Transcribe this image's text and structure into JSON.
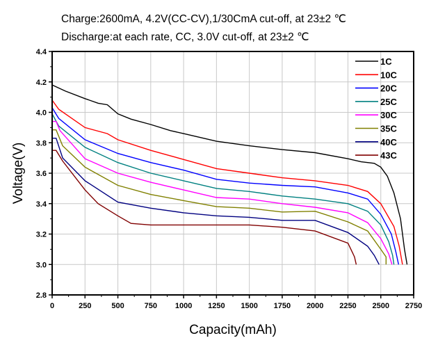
{
  "chart_data": {
    "type": "line",
    "title": "Charge:2600mA, 4.2V(CC-CV),1/30CmA cut-off, at 23±2 ℃",
    "subtitle": "Discharge:at each rate, CC, 3.0V cut-off, at 23±2 ℃",
    "xlabel": "Capacity(mAh)",
    "ylabel": "Voltage(V)",
    "xlim": [
      0,
      2750
    ],
    "ylim": [
      2.8,
      4.4
    ],
    "xticks": [
      "0",
      "250",
      "500",
      "750",
      "1000",
      "1250",
      "1500",
      "1750",
      "2000",
      "2250",
      "2500",
      "2750"
    ],
    "yticks": [
      "2.8",
      "3.0",
      "3.2",
      "3.4",
      "3.6",
      "3.8",
      "4.0",
      "4.2",
      "4.4"
    ],
    "grid": true,
    "legend_position": "top-right",
    "series": [
      {
        "name": "1C",
        "color": "#000000",
        "points": [
          [
            0,
            4.18
          ],
          [
            100,
            4.14
          ],
          [
            250,
            4.09
          ],
          [
            350,
            4.06
          ],
          [
            420,
            4.05
          ],
          [
            500,
            3.99
          ],
          [
            600,
            3.955
          ],
          [
            750,
            3.92
          ],
          [
            900,
            3.88
          ],
          [
            1000,
            3.86
          ],
          [
            1250,
            3.81
          ],
          [
            1500,
            3.78
          ],
          [
            1750,
            3.755
          ],
          [
            2000,
            3.735
          ],
          [
            2250,
            3.695
          ],
          [
            2350,
            3.675
          ],
          [
            2450,
            3.665
          ],
          [
            2500,
            3.64
          ],
          [
            2550,
            3.58
          ],
          [
            2600,
            3.47
          ],
          [
            2650,
            3.3
          ],
          [
            2680,
            3.1
          ],
          [
            2700,
            3.0
          ]
        ]
      },
      {
        "name": "10C",
        "color": "#ff0000",
        "points": [
          [
            0,
            4.08
          ],
          [
            50,
            4.02
          ],
          [
            250,
            3.9
          ],
          [
            420,
            3.86
          ],
          [
            500,
            3.82
          ],
          [
            750,
            3.75
          ],
          [
            1000,
            3.69
          ],
          [
            1250,
            3.63
          ],
          [
            1500,
            3.6
          ],
          [
            1750,
            3.57
          ],
          [
            2000,
            3.55
          ],
          [
            2250,
            3.52
          ],
          [
            2400,
            3.48
          ],
          [
            2500,
            3.4
          ],
          [
            2600,
            3.25
          ],
          [
            2640,
            3.12
          ],
          [
            2665,
            3.0
          ]
        ]
      },
      {
        "name": "20C",
        "color": "#0000ff",
        "points": [
          [
            0,
            4.03
          ],
          [
            50,
            3.96
          ],
          [
            250,
            3.82
          ],
          [
            500,
            3.73
          ],
          [
            750,
            3.67
          ],
          [
            1000,
            3.62
          ],
          [
            1250,
            3.56
          ],
          [
            1500,
            3.535
          ],
          [
            1750,
            3.52
          ],
          [
            2000,
            3.51
          ],
          [
            2250,
            3.47
          ],
          [
            2400,
            3.43
          ],
          [
            2500,
            3.33
          ],
          [
            2580,
            3.2
          ],
          [
            2615,
            3.08
          ],
          [
            2635,
            3.0
          ]
        ]
      },
      {
        "name": "25C",
        "color": "#008080",
        "points": [
          [
            0,
            3.99
          ],
          [
            50,
            3.91
          ],
          [
            250,
            3.77
          ],
          [
            500,
            3.67
          ],
          [
            750,
            3.6
          ],
          [
            1000,
            3.55
          ],
          [
            1250,
            3.5
          ],
          [
            1500,
            3.48
          ],
          [
            1750,
            3.45
          ],
          [
            2000,
            3.43
          ],
          [
            2250,
            3.4
          ],
          [
            2400,
            3.35
          ],
          [
            2500,
            3.26
          ],
          [
            2560,
            3.15
          ],
          [
            2590,
            3.06
          ],
          [
            2600,
            3.0
          ]
        ]
      },
      {
        "name": "30C",
        "color": "#ff00ff",
        "points": [
          [
            0,
            3.94
          ],
          [
            30,
            3.94
          ],
          [
            60,
            3.88
          ],
          [
            250,
            3.695
          ],
          [
            500,
            3.6
          ],
          [
            750,
            3.54
          ],
          [
            1000,
            3.49
          ],
          [
            1250,
            3.44
          ],
          [
            1500,
            3.43
          ],
          [
            1750,
            3.4
          ],
          [
            2000,
            3.376
          ],
          [
            2250,
            3.34
          ],
          [
            2400,
            3.275
          ],
          [
            2500,
            3.17
          ],
          [
            2560,
            3.07
          ],
          [
            2585,
            3.0
          ]
        ]
      },
      {
        "name": "35C",
        "color": "#808000",
        "points": [
          [
            0,
            3.885
          ],
          [
            30,
            3.885
          ],
          [
            80,
            3.78
          ],
          [
            250,
            3.64
          ],
          [
            500,
            3.52
          ],
          [
            750,
            3.46
          ],
          [
            1000,
            3.42
          ],
          [
            1250,
            3.38
          ],
          [
            1500,
            3.37
          ],
          [
            1750,
            3.345
          ],
          [
            2000,
            3.35
          ],
          [
            2250,
            3.28
          ],
          [
            2400,
            3.22
          ],
          [
            2500,
            3.1
          ],
          [
            2540,
            3.05
          ],
          [
            2540,
            3.0
          ]
        ]
      },
      {
        "name": "40C",
        "color": "#000080",
        "points": [
          [
            0,
            3.83
          ],
          [
            30,
            3.83
          ],
          [
            80,
            3.7
          ],
          [
            250,
            3.55
          ],
          [
            500,
            3.41
          ],
          [
            750,
            3.37
          ],
          [
            1000,
            3.34
          ],
          [
            1250,
            3.32
          ],
          [
            1500,
            3.31
          ],
          [
            1750,
            3.29
          ],
          [
            2000,
            3.29
          ],
          [
            2250,
            3.21
          ],
          [
            2400,
            3.12
          ],
          [
            2450,
            3.06
          ],
          [
            2487,
            3.0
          ]
        ]
      },
      {
        "name": "43C",
        "color": "#800000",
        "points": [
          [
            0,
            3.75
          ],
          [
            30,
            3.75
          ],
          [
            80,
            3.68
          ],
          [
            250,
            3.49
          ],
          [
            350,
            3.4
          ],
          [
            500,
            3.32
          ],
          [
            600,
            3.27
          ],
          [
            750,
            3.26
          ],
          [
            1000,
            3.26
          ],
          [
            1250,
            3.26
          ],
          [
            1500,
            3.26
          ],
          [
            1750,
            3.245
          ],
          [
            2000,
            3.22
          ],
          [
            2250,
            3.14
          ],
          [
            2300,
            3.05
          ],
          [
            2313,
            3.0
          ]
        ]
      }
    ]
  }
}
